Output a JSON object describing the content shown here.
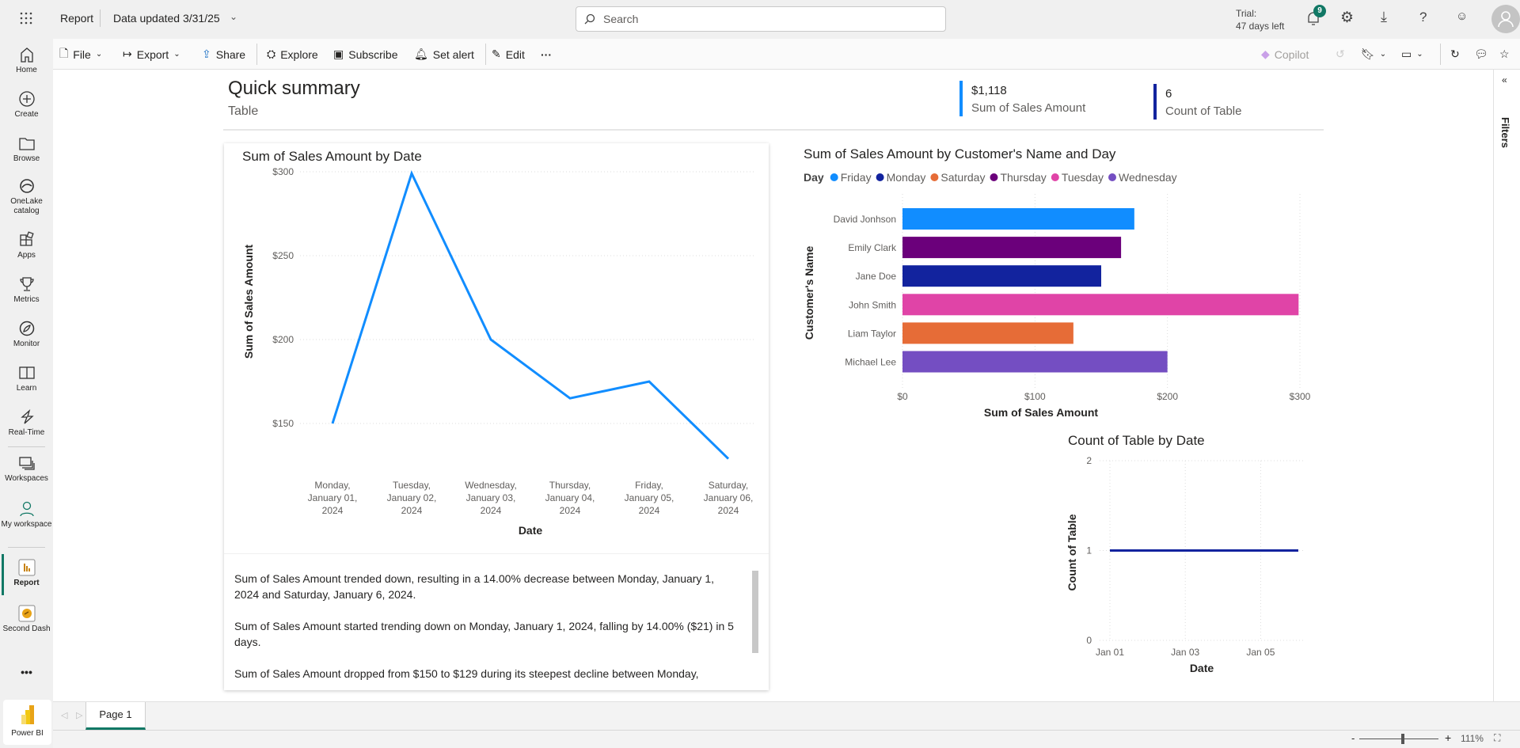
{
  "topbar": {
    "app": "Report",
    "data_updated": "Data updated 3/31/25",
    "search_placeholder": "Search",
    "trial_line1": "Trial:",
    "trial_line2": "47 days left",
    "notifications": "9"
  },
  "nav": {
    "items": [
      {
        "label": "Home"
      },
      {
        "label": "Create"
      },
      {
        "label": "Browse"
      },
      {
        "label": "OneLake catalog"
      },
      {
        "label": "Apps"
      },
      {
        "label": "Metrics"
      },
      {
        "label": "Monitor"
      },
      {
        "label": "Learn"
      },
      {
        "label": "Real-Time"
      },
      {
        "label": "Workspaces"
      },
      {
        "label": "My workspace"
      },
      {
        "label": "Report"
      },
      {
        "label": "Second Dash"
      }
    ],
    "more": "•••",
    "brand": "Power BI"
  },
  "toolbar": {
    "file": "File",
    "export": "Export",
    "share": "Share",
    "explore": "Explore",
    "subscribe": "Subscribe",
    "set_alert": "Set alert",
    "edit": "Edit",
    "more": "···",
    "copilot": "Copilot"
  },
  "header": {
    "title": "Quick summary",
    "subtitle": "Table"
  },
  "kpis": [
    {
      "value": "$1,118",
      "label": "Sum of Sales Amount",
      "color": "#118dff"
    },
    {
      "value": "6",
      "label": "Count of Table",
      "color": "#12239e"
    }
  ],
  "narrative": [
    "Sum of Sales Amount trended down, resulting in a 14.00% decrease between Monday, January 1, 2024 and Saturday, January 6, 2024.",
    "Sum of Sales Amount started trending down on Monday, January 1, 2024, falling by 14.00% ($21) in 5 days.",
    "Sum of Sales Amount dropped from $150 to $129 during its steepest decline between Monday,"
  ],
  "filters_label": "Filters",
  "page_tabs": [
    {
      "label": "Page 1"
    }
  ],
  "zoom": {
    "minus": "-",
    "plus": "+",
    "level": "111%",
    "fraction": 0.55
  },
  "chart_data": [
    {
      "type": "line",
      "title": "Sum of Sales Amount by Date",
      "xlabel": "Date",
      "ylabel": "Sum of Sales Amount",
      "categories": [
        [
          "Monday,",
          "January 01,",
          "2024"
        ],
        [
          "Tuesday,",
          "January 02,",
          "2024"
        ],
        [
          "Wednesday,",
          "January 03,",
          "2024"
        ],
        [
          "Thursday,",
          "January 04,",
          "2024"
        ],
        [
          "Friday,",
          "January 05,",
          "2024"
        ],
        [
          "Saturday,",
          "January 06,",
          "2024"
        ]
      ],
      "values": [
        150,
        299,
        200,
        165,
        175,
        129
      ],
      "yticks": [
        "$150",
        "$200",
        "$250",
        "$300"
      ],
      "ytick_values": [
        150,
        200,
        250,
        300
      ],
      "ylim": [
        120,
        300
      ],
      "color": "#118dff"
    },
    {
      "type": "bar",
      "orientation": "horizontal",
      "title": "Sum of Sales Amount by Customer's Name and Day",
      "xlabel": "Sum of Sales Amount",
      "ylabel": "Customer's Name",
      "legend_title": "Day",
      "legend": [
        {
          "name": "Friday",
          "color": "#118dff"
        },
        {
          "name": "Monday",
          "color": "#12239e"
        },
        {
          "name": "Saturday",
          "color": "#e66c37"
        },
        {
          "name": "Thursday",
          "color": "#6b007b"
        },
        {
          "name": "Tuesday",
          "color": "#e044a7"
        },
        {
          "name": "Wednesday",
          "color": "#744ec2"
        }
      ],
      "categories": [
        "David Jonhson",
        "Emily Clark",
        "Jane Doe",
        "John Smith",
        "Liam Taylor",
        "Michael Lee"
      ],
      "values": [
        175,
        165,
        150,
        299,
        129,
        200
      ],
      "colors": [
        "#118dff",
        "#6b007b",
        "#12239e",
        "#e044a7",
        "#e66c37",
        "#744ec2"
      ],
      "xticks": [
        "$0",
        "$100",
        "$200",
        "$300"
      ],
      "xtick_values": [
        0,
        100,
        200,
        300
      ],
      "xlim": [
        0,
        300
      ]
    },
    {
      "type": "line",
      "title": "Count of Table by Date",
      "xlabel": "Date",
      "ylabel": "Count of Table",
      "x": [
        1,
        2,
        3,
        4,
        5,
        6
      ],
      "values": [
        1,
        1,
        1,
        1,
        1,
        1
      ],
      "xticks": [
        "Jan 01",
        "Jan 03",
        "Jan 05"
      ],
      "xtick_values": [
        1,
        3,
        5
      ],
      "yticks": [
        "0",
        "1",
        "2"
      ],
      "ytick_values": [
        0,
        1,
        2
      ],
      "ylim": [
        0,
        2
      ],
      "color": "#12239e"
    }
  ]
}
